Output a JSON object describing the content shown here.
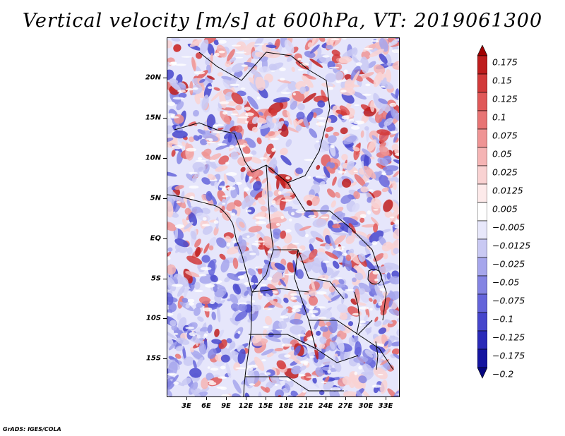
{
  "title": "Vertical velocity [m/s] at 600hPa, VT: 2019061300",
  "footer": "GrADS: IGES/COLA",
  "map": {
    "lat_labels": [
      "20N",
      "15N",
      "10N",
      "5N",
      "EQ",
      "5S",
      "10S",
      "15S"
    ],
    "lon_labels": [
      "3E",
      "6E",
      "9E",
      "12E",
      "15E",
      "18E",
      "21E",
      "24E",
      "27E",
      "30E",
      "33E"
    ]
  },
  "colorbar": {
    "labels": [
      "0.175",
      "0.15",
      "0.125",
      "0.1",
      "0.075",
      "0.05",
      "0.025",
      "0.0125",
      "0.005",
      "−0.005",
      "−0.0125",
      "−0.025",
      "−0.05",
      "−0.075",
      "−0.1",
      "−0.125",
      "−0.175",
      "−0.2"
    ],
    "colors": [
      "#a00000",
      "#be1d1d",
      "#d23a3a",
      "#e05858",
      "#e87474",
      "#ef9494",
      "#f5b4b4",
      "#f9d2d2",
      "#fdeaea",
      "#ffffff",
      "#e8e8fb",
      "#c9c9f3",
      "#a6a6ec",
      "#8484e3",
      "#6464da",
      "#4646cc",
      "#2a2ab8",
      "#1414a0",
      "#050580"
    ]
  }
}
